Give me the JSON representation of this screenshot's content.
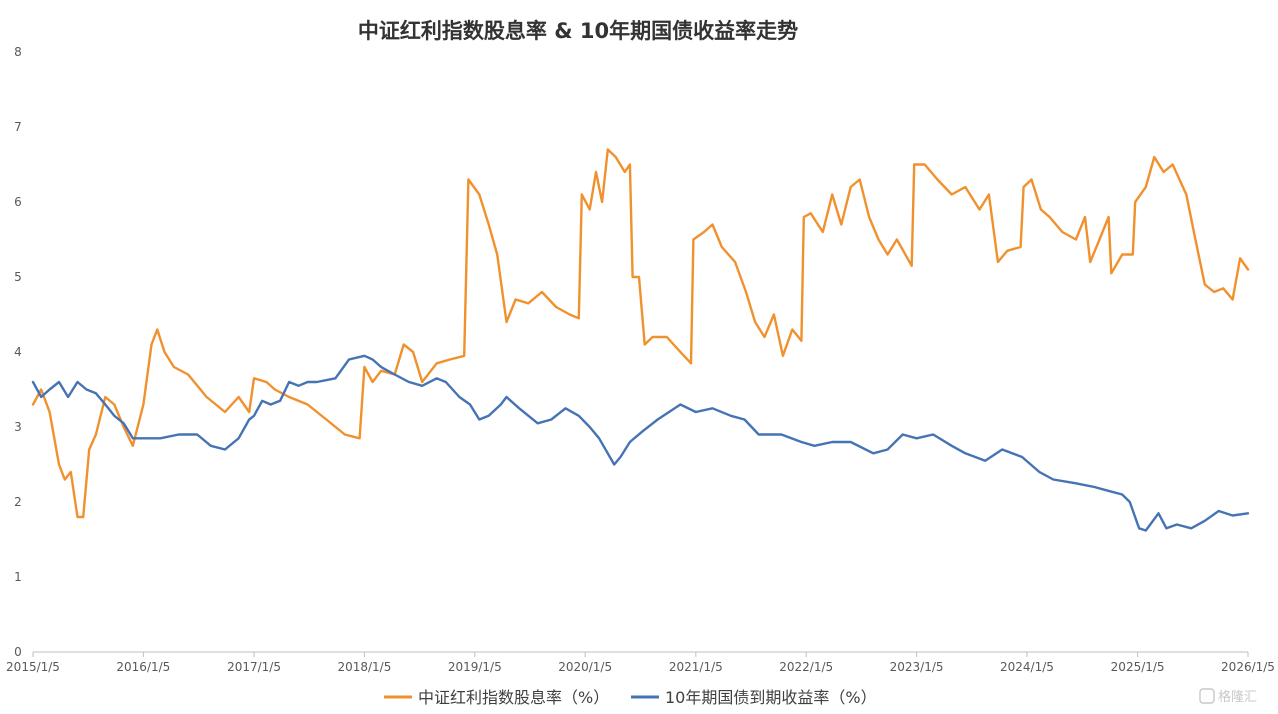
{
  "chart_data": {
    "type": "line",
    "title": "中证红利指数股息率 & 10年期国债收益率走势",
    "xlabel": "",
    "ylabel": "",
    "ylim": [
      0,
      8
    ],
    "yticks": [
      "0",
      "1",
      "2",
      "3",
      "4",
      "5",
      "6",
      "7",
      "8"
    ],
    "xlim": [
      "2015-01-05",
      "2026-01-05"
    ],
    "xticks": [
      {
        "date": "2015-01-05",
        "label": "2015/1/5"
      },
      {
        "date": "2016-01-05",
        "label": "2016/1/5"
      },
      {
        "date": "2017-01-05",
        "label": "2017/1/5"
      },
      {
        "date": "2018-01-05",
        "label": "2018/1/5"
      },
      {
        "date": "2019-01-05",
        "label": "2019/1/5"
      },
      {
        "date": "2020-01-05",
        "label": "2020/1/5"
      },
      {
        "date": "2021-01-05",
        "label": "2021/1/5"
      },
      {
        "date": "2022-01-05",
        "label": "2022/1/5"
      },
      {
        "date": "2023-01-05",
        "label": "2023/1/5"
      },
      {
        "date": "2024-01-05",
        "label": "2024/1/5"
      },
      {
        "date": "2025-01-05",
        "label": "2025/1/5"
      },
      {
        "date": "2026-01-05",
        "label": "2026/1/5"
      }
    ],
    "grid": false,
    "legend_position": "bottom",
    "series": [
      {
        "name": "中证红利指数股息率（%）",
        "color": "#f0912e",
        "points": [
          [
            "2015-01-05",
            3.3
          ],
          [
            "2015-02-01",
            3.5
          ],
          [
            "2015-03-01",
            3.2
          ],
          [
            "2015-04-01",
            2.5
          ],
          [
            "2015-04-20",
            2.3
          ],
          [
            "2015-05-10",
            2.4
          ],
          [
            "2015-06-01",
            1.8
          ],
          [
            "2015-06-20",
            1.8
          ],
          [
            "2015-07-10",
            2.7
          ],
          [
            "2015-08-01",
            2.9
          ],
          [
            "2015-09-01",
            3.4
          ],
          [
            "2015-10-01",
            3.3
          ],
          [
            "2015-11-01",
            3.0
          ],
          [
            "2015-12-01",
            2.75
          ],
          [
            "2016-01-05",
            3.3
          ],
          [
            "2016-02-01",
            4.1
          ],
          [
            "2016-02-20",
            4.3
          ],
          [
            "2016-03-15",
            4.0
          ],
          [
            "2016-04-15",
            3.8
          ],
          [
            "2016-06-01",
            3.7
          ],
          [
            "2016-08-01",
            3.4
          ],
          [
            "2016-10-01",
            3.2
          ],
          [
            "2016-11-15",
            3.4
          ],
          [
            "2016-12-20",
            3.2
          ],
          [
            "2017-01-05",
            3.65
          ],
          [
            "2017-02-15",
            3.6
          ],
          [
            "2017-03-15",
            3.5
          ],
          [
            "2017-05-01",
            3.4
          ],
          [
            "2017-07-01",
            3.3
          ],
          [
            "2017-09-01",
            3.1
          ],
          [
            "2017-11-01",
            2.9
          ],
          [
            "2017-12-20",
            2.85
          ],
          [
            "2018-01-05",
            3.8
          ],
          [
            "2018-02-01",
            3.6
          ],
          [
            "2018-03-01",
            3.75
          ],
          [
            "2018-04-15",
            3.7
          ],
          [
            "2018-05-15",
            4.1
          ],
          [
            "2018-06-15",
            4.0
          ],
          [
            "2018-07-15",
            3.6
          ],
          [
            "2018-09-01",
            3.85
          ],
          [
            "2018-10-15",
            3.9
          ],
          [
            "2018-12-01",
            3.95
          ],
          [
            "2018-12-15",
            6.3
          ],
          [
            "2019-01-20",
            6.1
          ],
          [
            "2019-02-20",
            5.7
          ],
          [
            "2019-03-20",
            5.3
          ],
          [
            "2019-04-20",
            4.4
          ],
          [
            "2019-05-20",
            4.7
          ],
          [
            "2019-07-01",
            4.65
          ],
          [
            "2019-08-15",
            4.8
          ],
          [
            "2019-10-01",
            4.6
          ],
          [
            "2019-11-15",
            4.5
          ],
          [
            "2019-12-15",
            4.45
          ],
          [
            "2019-12-25",
            6.1
          ],
          [
            "2020-01-20",
            5.9
          ],
          [
            "2020-02-10",
            6.4
          ],
          [
            "2020-03-01",
            6.0
          ],
          [
            "2020-03-20",
            6.7
          ],
          [
            "2020-04-15",
            6.6
          ],
          [
            "2020-05-15",
            6.4
          ],
          [
            "2020-06-01",
            6.5
          ],
          [
            "2020-06-10",
            5.0
          ],
          [
            "2020-07-01",
            5.0
          ],
          [
            "2020-07-20",
            4.1
          ],
          [
            "2020-08-15",
            4.2
          ],
          [
            "2020-10-01",
            4.2
          ],
          [
            "2020-11-15",
            4.0
          ],
          [
            "2020-12-20",
            3.85
          ],
          [
            "2020-12-28",
            5.5
          ],
          [
            "2021-02-01",
            5.6
          ],
          [
            "2021-03-01",
            5.7
          ],
          [
            "2021-04-01",
            5.4
          ],
          [
            "2021-05-15",
            5.2
          ],
          [
            "2021-06-20",
            4.8
          ],
          [
            "2021-07-20",
            4.4
          ],
          [
            "2021-08-20",
            4.2
          ],
          [
            "2021-09-20",
            4.5
          ],
          [
            "2021-10-20",
            3.95
          ],
          [
            "2021-11-20",
            4.3
          ],
          [
            "2021-12-20",
            4.15
          ],
          [
            "2021-12-28",
            5.8
          ],
          [
            "2022-01-20",
            5.85
          ],
          [
            "2022-03-01",
            5.6
          ],
          [
            "2022-04-01",
            6.1
          ],
          [
            "2022-05-01",
            5.7
          ],
          [
            "2022-06-01",
            6.2
          ],
          [
            "2022-07-01",
            6.3
          ],
          [
            "2022-08-01",
            5.8
          ],
          [
            "2022-09-01",
            5.5
          ],
          [
            "2022-10-01",
            5.3
          ],
          [
            "2022-11-01",
            5.5
          ],
          [
            "2022-12-20",
            5.15
          ],
          [
            "2022-12-28",
            6.5
          ],
          [
            "2023-02-01",
            6.5
          ],
          [
            "2023-03-15",
            6.3
          ],
          [
            "2023-05-01",
            6.1
          ],
          [
            "2023-06-15",
            6.2
          ],
          [
            "2023-08-01",
            5.9
          ],
          [
            "2023-09-01",
            6.1
          ],
          [
            "2023-10-01",
            5.2
          ],
          [
            "2023-11-01",
            5.35
          ],
          [
            "2023-12-15",
            5.4
          ],
          [
            "2023-12-25",
            6.2
          ],
          [
            "2024-01-20",
            6.3
          ],
          [
            "2024-02-20",
            5.9
          ],
          [
            "2024-03-20",
            5.8
          ],
          [
            "2024-05-01",
            5.6
          ],
          [
            "2024-06-15",
            5.5
          ],
          [
            "2024-07-15",
            5.8
          ],
          [
            "2024-08-01",
            5.2
          ],
          [
            "2024-09-01",
            5.5
          ],
          [
            "2024-10-01",
            5.8
          ],
          [
            "2024-10-10",
            5.05
          ],
          [
            "2024-11-15",
            5.3
          ],
          [
            "2024-12-20",
            5.3
          ],
          [
            "2024-12-28",
            6.0
          ],
          [
            "2025-02-01",
            6.2
          ],
          [
            "2025-03-01",
            6.6
          ],
          [
            "2025-04-01",
            6.4
          ],
          [
            "2025-05-01",
            6.5
          ],
          [
            "2025-06-15",
            6.1
          ],
          [
            "2025-07-15",
            5.5
          ],
          [
            "2025-08-15",
            4.9
          ],
          [
            "2025-09-15",
            4.8
          ],
          [
            "2025-10-15",
            4.85
          ],
          [
            "2025-11-15",
            4.7
          ],
          [
            "2025-12-10",
            5.25
          ],
          [
            "2026-01-05",
            5.1
          ]
        ]
      },
      {
        "name": "10年期国债到期收益率（%）",
        "color": "#4673b4",
        "points": [
          [
            "2015-01-05",
            3.6
          ],
          [
            "2015-02-01",
            3.4
          ],
          [
            "2015-03-01",
            3.5
          ],
          [
            "2015-04-01",
            3.6
          ],
          [
            "2015-05-01",
            3.4
          ],
          [
            "2015-06-01",
            3.6
          ],
          [
            "2015-07-01",
            3.5
          ],
          [
            "2015-08-01",
            3.45
          ],
          [
            "2015-09-01",
            3.3
          ],
          [
            "2015-10-01",
            3.15
          ],
          [
            "2015-11-01",
            3.05
          ],
          [
            "2015-12-01",
            2.85
          ],
          [
            "2016-01-05",
            2.85
          ],
          [
            "2016-03-01",
            2.85
          ],
          [
            "2016-05-01",
            2.9
          ],
          [
            "2016-07-01",
            2.9
          ],
          [
            "2016-08-15",
            2.75
          ],
          [
            "2016-10-01",
            2.7
          ],
          [
            "2016-11-15",
            2.85
          ],
          [
            "2016-12-20",
            3.1
          ],
          [
            "2017-01-05",
            3.15
          ],
          [
            "2017-02-01",
            3.35
          ],
          [
            "2017-03-01",
            3.3
          ],
          [
            "2017-04-01",
            3.35
          ],
          [
            "2017-05-01",
            3.6
          ],
          [
            "2017-06-01",
            3.55
          ],
          [
            "2017-07-01",
            3.6
          ],
          [
            "2017-08-01",
            3.6
          ],
          [
            "2017-10-01",
            3.65
          ],
          [
            "2017-11-15",
            3.9
          ],
          [
            "2018-01-05",
            3.95
          ],
          [
            "2018-02-01",
            3.9
          ],
          [
            "2018-03-01",
            3.8
          ],
          [
            "2018-04-15",
            3.7
          ],
          [
            "2018-06-01",
            3.6
          ],
          [
            "2018-07-15",
            3.55
          ],
          [
            "2018-09-01",
            3.65
          ],
          [
            "2018-10-01",
            3.6
          ],
          [
            "2018-11-15",
            3.4
          ],
          [
            "2018-12-20",
            3.3
          ],
          [
            "2019-01-20",
            3.1
          ],
          [
            "2019-02-20",
            3.15
          ],
          [
            "2019-04-01",
            3.3
          ],
          [
            "2019-04-20",
            3.4
          ],
          [
            "2019-06-01",
            3.25
          ],
          [
            "2019-08-01",
            3.05
          ],
          [
            "2019-09-15",
            3.1
          ],
          [
            "2019-11-01",
            3.25
          ],
          [
            "2019-12-15",
            3.15
          ],
          [
            "2020-01-20",
            3.0
          ],
          [
            "2020-02-20",
            2.85
          ],
          [
            "2020-04-10",
            2.5
          ],
          [
            "2020-05-01",
            2.6
          ],
          [
            "2020-06-01",
            2.8
          ],
          [
            "2020-07-15",
            2.95
          ],
          [
            "2020-09-01",
            3.1
          ],
          [
            "2020-11-15",
            3.3
          ],
          [
            "2021-01-05",
            3.2
          ],
          [
            "2021-03-01",
            3.25
          ],
          [
            "2021-05-01",
            3.15
          ],
          [
            "2021-06-15",
            3.1
          ],
          [
            "2021-08-01",
            2.9
          ],
          [
            "2021-10-15",
            2.9
          ],
          [
            "2021-12-20",
            2.8
          ],
          [
            "2022-02-01",
            2.75
          ],
          [
            "2022-04-01",
            2.8
          ],
          [
            "2022-06-01",
            2.8
          ],
          [
            "2022-08-15",
            2.65
          ],
          [
            "2022-10-01",
            2.7
          ],
          [
            "2022-11-20",
            2.9
          ],
          [
            "2023-01-05",
            2.85
          ],
          [
            "2023-03-01",
            2.9
          ],
          [
            "2023-05-01",
            2.75
          ],
          [
            "2023-06-15",
            2.65
          ],
          [
            "2023-08-20",
            2.55
          ],
          [
            "2023-10-15",
            2.7
          ],
          [
            "2023-12-20",
            2.6
          ],
          [
            "2024-02-15",
            2.4
          ],
          [
            "2024-04-01",
            2.3
          ],
          [
            "2024-06-15",
            2.25
          ],
          [
            "2024-08-15",
            2.2
          ],
          [
            "2024-09-30",
            2.15
          ],
          [
            "2024-11-15",
            2.1
          ],
          [
            "2024-12-10",
            2.0
          ],
          [
            "2025-01-10",
            1.65
          ],
          [
            "2025-02-01",
            1.62
          ],
          [
            "2025-03-15",
            1.85
          ],
          [
            "2025-04-10",
            1.65
          ],
          [
            "2025-05-15",
            1.7
          ],
          [
            "2025-07-01",
            1.65
          ],
          [
            "2025-08-15",
            1.75
          ],
          [
            "2025-09-30",
            1.88
          ],
          [
            "2025-11-15",
            1.82
          ],
          [
            "2026-01-05",
            1.85
          ]
        ]
      }
    ]
  },
  "watermark": "格隆汇"
}
